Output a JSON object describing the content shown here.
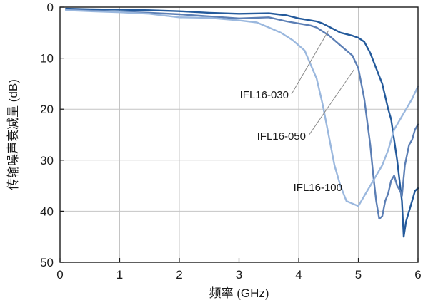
{
  "chart_data": {
    "type": "line",
    "xlabel": "频率 (GHz)",
    "ylabel": "传输噪声衰减量 (dB)",
    "xlim": [
      0,
      6
    ],
    "ylim": [
      0,
      50
    ],
    "y_inverted": true,
    "xticks": [
      0,
      1,
      2,
      3,
      4,
      5,
      6
    ],
    "yticks": [
      0,
      10,
      20,
      30,
      40,
      50
    ],
    "grid": true,
    "legend": "none",
    "series": [
      {
        "name": "IFL16-030",
        "color": "#245a9b",
        "annotation": {
          "x": 4.5,
          "y": 4.6
        },
        "points": [
          [
            0.1,
            0.3
          ],
          [
            0.5,
            0.4
          ],
          [
            1.0,
            0.5
          ],
          [
            1.5,
            0.6
          ],
          [
            2.0,
            0.8
          ],
          [
            2.5,
            1.1
          ],
          [
            3.0,
            1.3
          ],
          [
            3.5,
            1.2
          ],
          [
            3.8,
            1.6
          ],
          [
            4.0,
            2.2
          ],
          [
            4.2,
            2.6
          ],
          [
            4.3,
            2.8
          ],
          [
            4.4,
            3.2
          ],
          [
            4.5,
            3.8
          ],
          [
            4.7,
            5.0
          ],
          [
            4.9,
            5.6
          ],
          [
            5.0,
            6.0
          ],
          [
            5.1,
            6.8
          ],
          [
            5.2,
            9.0
          ],
          [
            5.3,
            12.0
          ],
          [
            5.4,
            15.0
          ],
          [
            5.5,
            20.0
          ],
          [
            5.55,
            22.0
          ],
          [
            5.6,
            26.0
          ],
          [
            5.65,
            30.0
          ],
          [
            5.7,
            35.0
          ],
          [
            5.73,
            38.0
          ],
          [
            5.76,
            45.0
          ],
          [
            5.8,
            42.0
          ],
          [
            5.85,
            40.0
          ],
          [
            5.9,
            38.0
          ],
          [
            5.95,
            36.0
          ],
          [
            6.0,
            35.5
          ]
        ]
      },
      {
        "name": "IFL16-050",
        "color": "#5c7fb5",
        "annotation": {
          "x": 4.93,
          "y": 12.2
        },
        "points": [
          [
            0.1,
            0.5
          ],
          [
            0.5,
            0.7
          ],
          [
            1.0,
            0.9
          ],
          [
            1.5,
            1.1
          ],
          [
            2.0,
            1.4
          ],
          [
            2.5,
            1.8
          ],
          [
            3.0,
            2.2
          ],
          [
            3.5,
            2.0
          ],
          [
            3.8,
            2.8
          ],
          [
            4.0,
            3.2
          ],
          [
            4.2,
            3.6
          ],
          [
            4.3,
            4.0
          ],
          [
            4.5,
            5.5
          ],
          [
            4.7,
            7.5
          ],
          [
            4.9,
            9.5
          ],
          [
            5.0,
            12.0
          ],
          [
            5.1,
            18.0
          ],
          [
            5.2,
            27.0
          ],
          [
            5.25,
            33.0
          ],
          [
            5.3,
            38.0
          ],
          [
            5.35,
            41.5
          ],
          [
            5.4,
            41.0
          ],
          [
            5.45,
            38.0
          ],
          [
            5.5,
            36.5
          ],
          [
            5.55,
            34.0
          ],
          [
            5.6,
            33.0
          ],
          [
            5.65,
            35.0
          ],
          [
            5.7,
            36.0
          ],
          [
            5.73,
            37.0
          ],
          [
            5.78,
            31.0
          ],
          [
            5.85,
            27.0
          ],
          [
            5.9,
            26.0
          ],
          [
            5.95,
            24.0
          ],
          [
            6.0,
            23.0
          ]
        ]
      },
      {
        "name": "IFL16-100",
        "color": "#9bb8de",
        "annotation": {
          "x": 4.9,
          "y": 38.6
        },
        "points": [
          [
            0.1,
            0.6
          ],
          [
            0.5,
            0.8
          ],
          [
            1.0,
            1.0
          ],
          [
            1.5,
            1.3
          ],
          [
            2.0,
            2.0
          ],
          [
            2.5,
            2.1
          ],
          [
            3.0,
            2.6
          ],
          [
            3.3,
            3.0
          ],
          [
            3.5,
            4.0
          ],
          [
            3.7,
            5.0
          ],
          [
            3.9,
            6.5
          ],
          [
            4.1,
            8.5
          ],
          [
            4.3,
            14.0
          ],
          [
            4.4,
            19.0
          ],
          [
            4.5,
            25.0
          ],
          [
            4.6,
            31.0
          ],
          [
            4.7,
            35.0
          ],
          [
            4.8,
            38.0
          ],
          [
            4.9,
            38.5
          ],
          [
            5.0,
            39.0
          ],
          [
            5.1,
            37.0
          ],
          [
            5.2,
            35.0
          ],
          [
            5.3,
            33.0
          ],
          [
            5.4,
            31.0
          ],
          [
            5.5,
            28.0
          ],
          [
            5.6,
            24.0
          ],
          [
            5.7,
            22.0
          ],
          [
            5.8,
            20.0
          ],
          [
            5.9,
            18.0
          ],
          [
            6.0,
            15.5
          ]
        ]
      }
    ]
  }
}
